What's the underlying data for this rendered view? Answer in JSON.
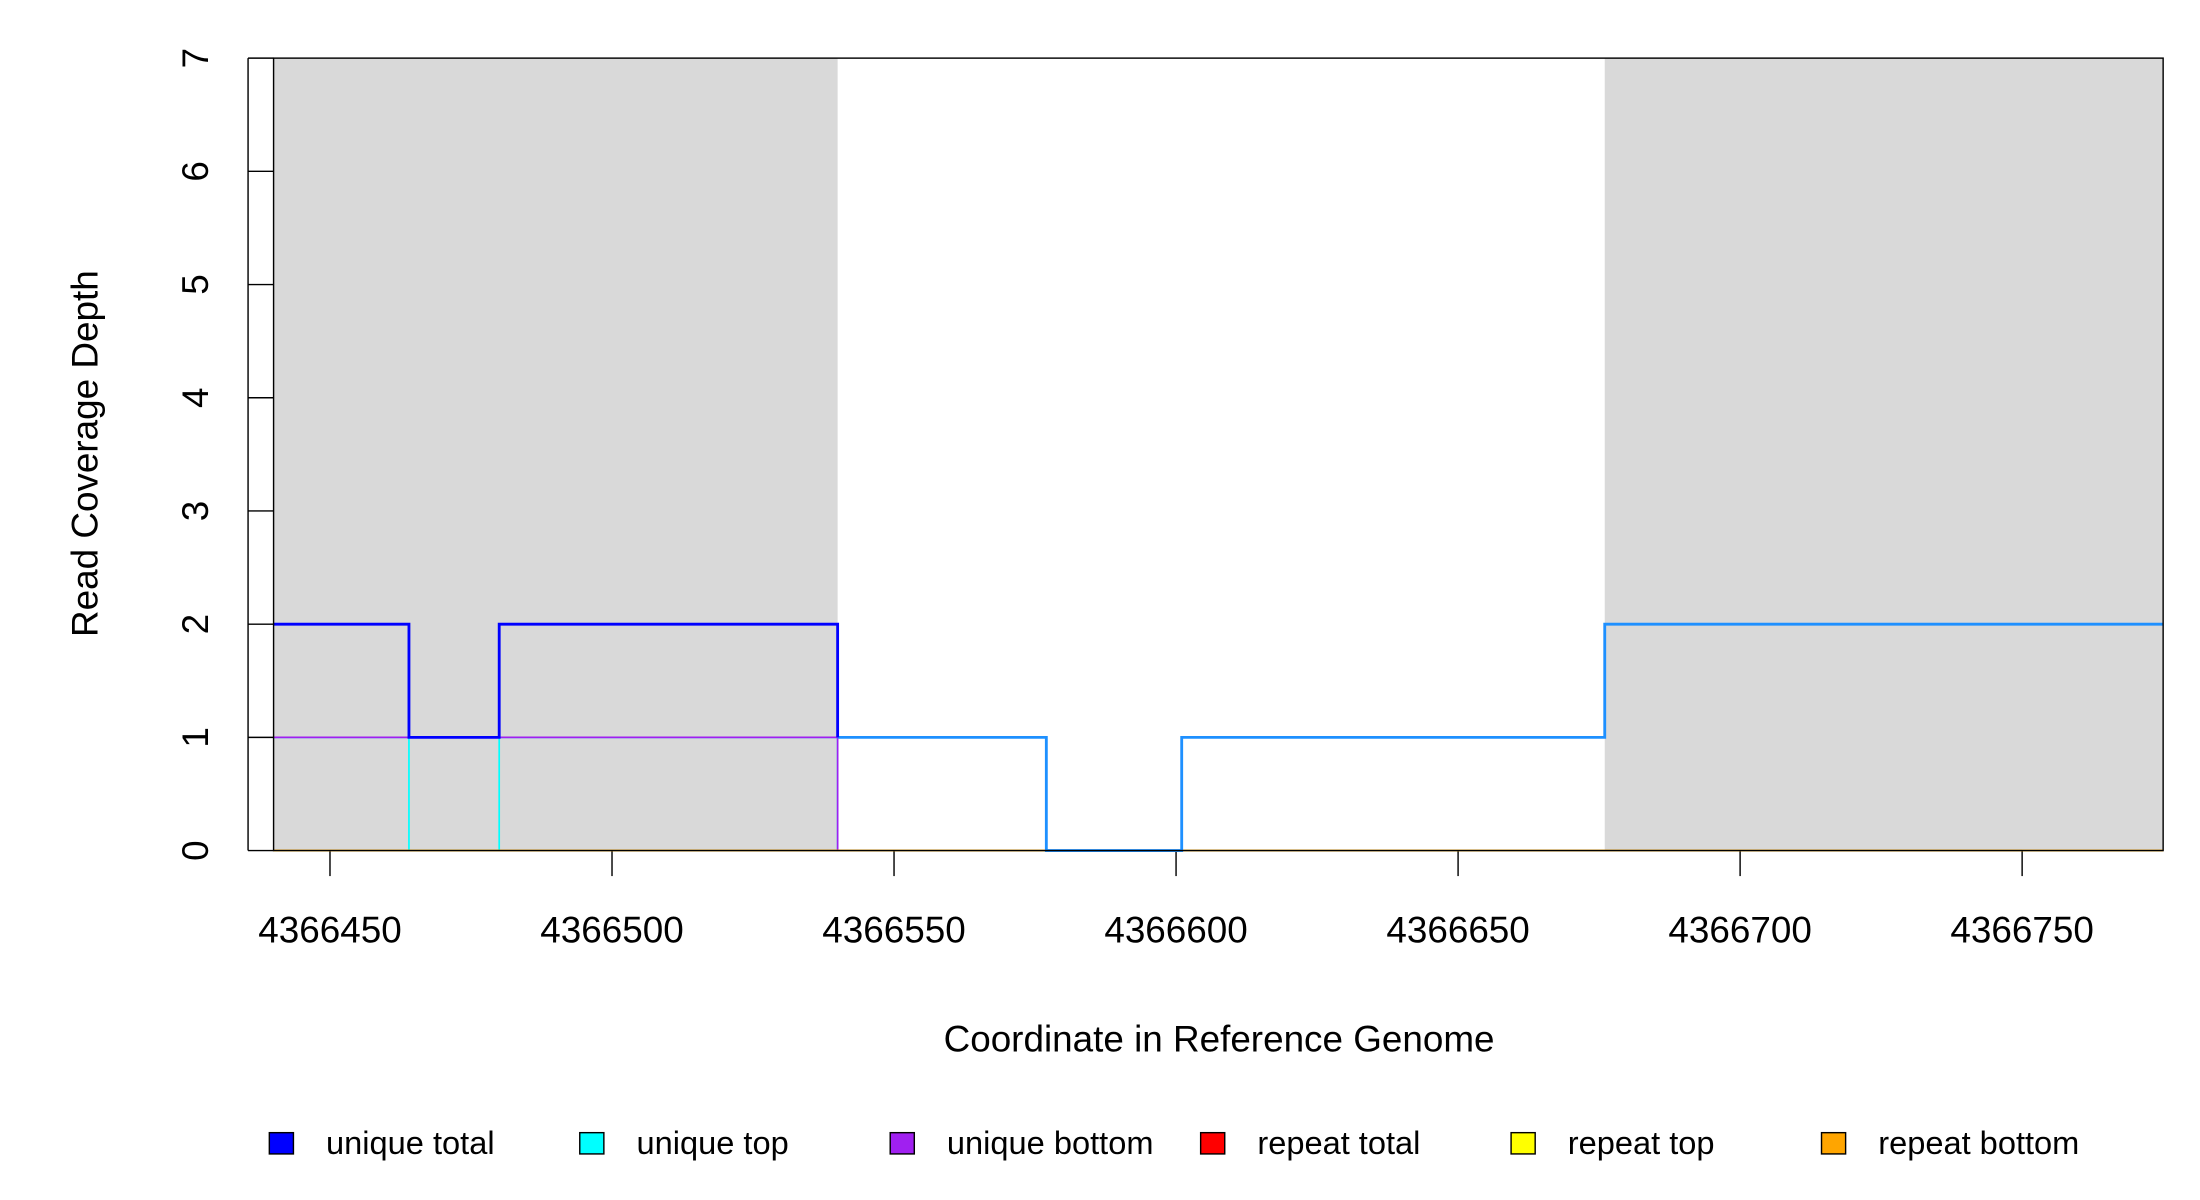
{
  "chart_data": {
    "type": "step",
    "xlabel": "Coordinate in Reference Genome",
    "ylabel": "Read Coverage Depth",
    "xlim": [
      4366440,
      4366775
    ],
    "ylim": [
      0,
      7
    ],
    "xticks": [
      4366450,
      4366500,
      4366550,
      4366600,
      4366650,
      4366700,
      4366750
    ],
    "yticks": [
      0,
      1,
      2,
      3,
      4,
      5,
      6,
      7
    ],
    "shaded_regions": [
      [
        4366440,
        4366540
      ],
      [
        4366676,
        4366775
      ]
    ],
    "shade_color": "#d9d9d9",
    "series": [
      {
        "name": "unique top",
        "color": "#00ffff",
        "x": [
          4366440,
          4366464,
          4366480,
          4366540
        ],
        "values": [
          1,
          0,
          1,
          0
        ]
      },
      {
        "name": "unique bottom",
        "color": "#a020f0",
        "x": [
          4366440,
          4366540
        ],
        "values": [
          1,
          0
        ]
      },
      {
        "name": "repeat total",
        "color": "#ff0000",
        "x": [
          4366440,
          4366775
        ],
        "values": [
          0,
          0
        ]
      },
      {
        "name": "repeat top",
        "color": "#ffff00",
        "x": [
          4366440,
          4366775
        ],
        "values": [
          0,
          0
        ]
      },
      {
        "name": "repeat bottom",
        "color": "#ffa500",
        "x": [
          4366440,
          4366775
        ],
        "values": [
          0,
          0
        ]
      },
      {
        "color": "#1e90ff",
        "x": [
          4366540,
          4366577,
          4366601,
          4366676,
          4366775
        ],
        "values": [
          1,
          0,
          1,
          2,
          2
        ]
      },
      {
        "name": "unique total",
        "color": "#0000ff",
        "x": [
          4366440,
          4366464,
          4366480,
          4366540
        ],
        "values": [
          2,
          1,
          2,
          1
        ]
      }
    ],
    "legend_order": [
      6,
      0,
      1,
      2,
      3,
      4
    ]
  }
}
